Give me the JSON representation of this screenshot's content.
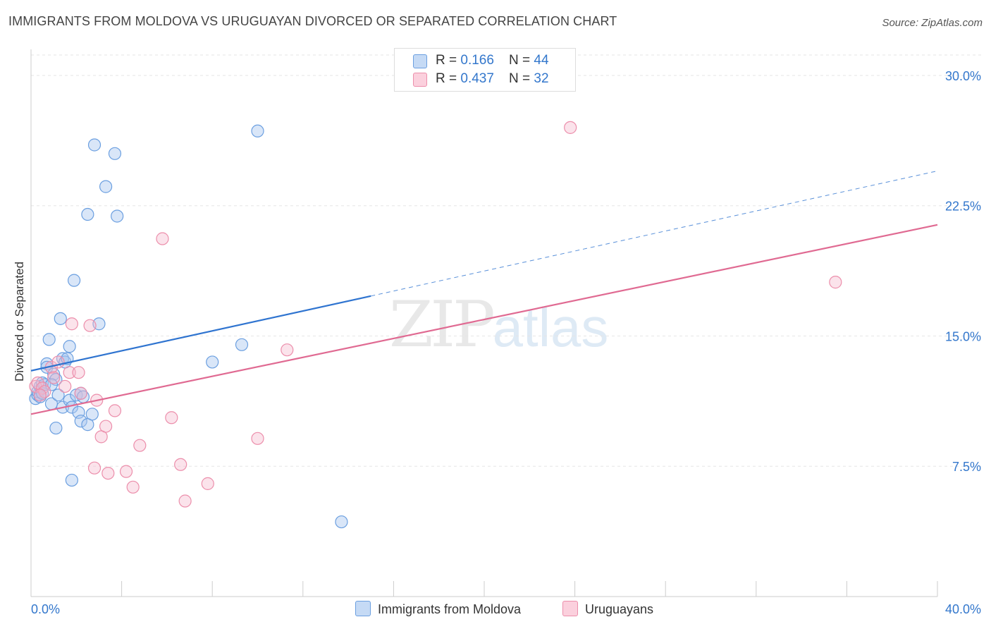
{
  "title": "IMMIGRANTS FROM MOLDOVA VS URUGUAYAN DIVORCED OR SEPARATED CORRELATION CHART",
  "source": "Source: ZipAtlas.com",
  "watermark": {
    "zip": "ZIP",
    "atlas": "atlas"
  },
  "colors": {
    "blue_fill": "#aac8f0",
    "blue_stroke": "#6b9fe0",
    "blue_line": "#2f74d0",
    "pink_fill": "#f5b8cc",
    "pink_stroke": "#ec8eab",
    "pink_line": "#e06a92",
    "grid": "#e6e6e6",
    "axis_label": "#3377cc"
  },
  "legend": {
    "blue": {
      "r_label": "R = ",
      "r_value": "0.166",
      "n_label": "N = ",
      "n_value": "44"
    },
    "pink": {
      "r_label": "R = ",
      "r_value": "0.437",
      "n_label": "N = ",
      "n_value": "32"
    }
  },
  "bottom_legend": {
    "blue": "Immigrants from Moldova",
    "pink": "Uruguayans"
  },
  "chart_data": {
    "type": "scatter",
    "title": "IMMIGRANTS FROM MOLDOVA VS URUGUAYAN DIVORCED OR SEPARATED CORRELATION CHART",
    "xlabel": "",
    "ylabel": "Divorced or Separated",
    "xlim": [
      0,
      40
    ],
    "ylim": [
      0,
      31.5
    ],
    "x_tick_labels": [
      "0.0%",
      "40.0%"
    ],
    "y_ticks": [
      7.5,
      15.0,
      22.5,
      30.0
    ],
    "y_tick_labels": [
      "7.5%",
      "15.0%",
      "22.5%",
      "30.0%"
    ],
    "series": [
      {
        "name": "Immigrants from Moldova",
        "color": "#6b9fe0",
        "R": 0.166,
        "N": 44,
        "trend": {
          "x0": 0,
          "y0": 13.0,
          "x1": 15,
          "y1": 17.3,
          "dashed_to_x": 40,
          "dashed_to_y": 24.5
        },
        "points": [
          [
            0.2,
            11.4
          ],
          [
            0.3,
            11.6
          ],
          [
            0.3,
            11.8
          ],
          [
            0.4,
            11.5
          ],
          [
            0.4,
            12.1
          ],
          [
            0.5,
            12.3
          ],
          [
            0.5,
            11.7
          ],
          [
            0.6,
            12.2
          ],
          [
            0.7,
            13.4
          ],
          [
            0.7,
            13.2
          ],
          [
            0.8,
            14.8
          ],
          [
            0.9,
            11.1
          ],
          [
            1.0,
            12.8
          ],
          [
            1.1,
            12.5
          ],
          [
            1.1,
            9.7
          ],
          [
            1.2,
            11.6
          ],
          [
            1.3,
            16.0
          ],
          [
            1.4,
            13.7
          ],
          [
            1.4,
            10.9
          ],
          [
            1.5,
            13.5
          ],
          [
            1.6,
            13.7
          ],
          [
            1.7,
            11.3
          ],
          [
            1.7,
            14.4
          ],
          [
            1.8,
            10.9
          ],
          [
            1.8,
            6.7
          ],
          [
            1.9,
            18.2
          ],
          [
            2.0,
            11.6
          ],
          [
            2.1,
            10.6
          ],
          [
            2.2,
            11.7
          ],
          [
            2.2,
            10.1
          ],
          [
            2.3,
            11.5
          ],
          [
            2.5,
            9.9
          ],
          [
            2.5,
            22.0
          ],
          [
            2.7,
            10.5
          ],
          [
            2.8,
            26.0
          ],
          [
            3.0,
            15.7
          ],
          [
            3.3,
            23.6
          ],
          [
            3.7,
            25.5
          ],
          [
            3.8,
            21.9
          ],
          [
            8.0,
            13.5
          ],
          [
            9.3,
            14.5
          ],
          [
            10.0,
            26.8
          ],
          [
            13.7,
            4.3
          ],
          [
            0.9,
            12.2
          ]
        ]
      },
      {
        "name": "Uruguayans",
        "color": "#ec8eab",
        "R": 0.437,
        "N": 32,
        "trend": {
          "x0": 0,
          "y0": 10.5,
          "x1": 40,
          "y1": 21.4
        },
        "points": [
          [
            0.2,
            12.1
          ],
          [
            0.3,
            12.3
          ],
          [
            0.5,
            12.0
          ],
          [
            0.6,
            11.8
          ],
          [
            0.9,
            13.2
          ],
          [
            1.0,
            12.6
          ],
          [
            1.2,
            13.5
          ],
          [
            1.5,
            12.1
          ],
          [
            1.7,
            12.9
          ],
          [
            1.8,
            15.7
          ],
          [
            2.1,
            12.9
          ],
          [
            2.2,
            11.7
          ],
          [
            2.6,
            15.6
          ],
          [
            2.9,
            11.3
          ],
          [
            2.8,
            7.4
          ],
          [
            3.1,
            9.2
          ],
          [
            3.3,
            9.8
          ],
          [
            3.4,
            7.1
          ],
          [
            3.7,
            10.7
          ],
          [
            4.2,
            7.2
          ],
          [
            4.5,
            6.3
          ],
          [
            4.8,
            8.7
          ],
          [
            5.8,
            20.6
          ],
          [
            6.2,
            10.3
          ],
          [
            6.6,
            7.6
          ],
          [
            6.8,
            5.5
          ],
          [
            7.8,
            6.5
          ],
          [
            10.0,
            9.1
          ],
          [
            11.3,
            14.2
          ],
          [
            23.8,
            27.0
          ],
          [
            35.5,
            18.1
          ],
          [
            0.4,
            11.6
          ]
        ]
      }
    ]
  }
}
